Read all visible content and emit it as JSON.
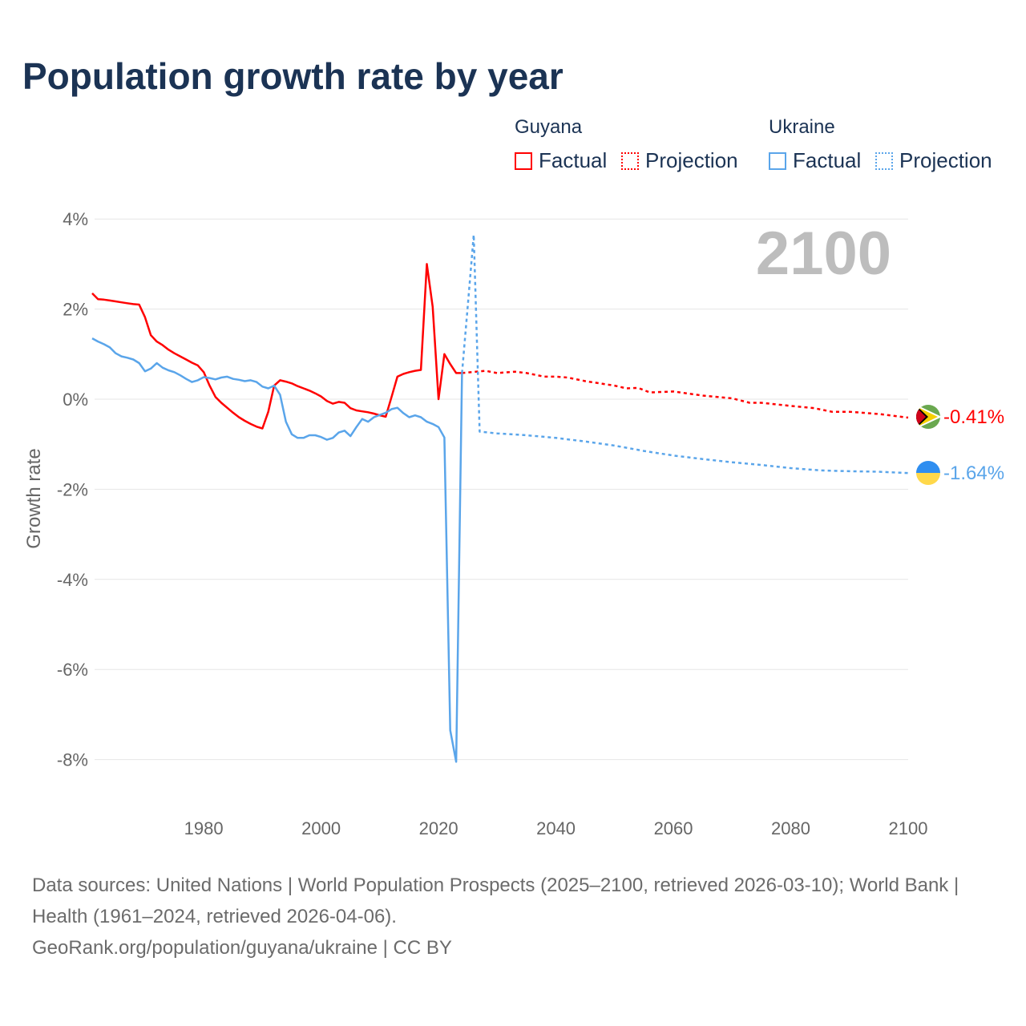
{
  "title": "Population growth rate by year",
  "legend": {
    "groups": [
      {
        "name": "Guyana",
        "color": "#ff0000",
        "factual": "Factual",
        "projection": "Projection"
      },
      {
        "name": "Ukraine",
        "color": "#5aa5ea",
        "factual": "Factual",
        "projection": "Projection"
      }
    ]
  },
  "year_label": "2100",
  "end_labels": {
    "guyana": "-0.41%",
    "ukraine": "-1.64%"
  },
  "footer": {
    "sources": "Data sources: United Nations | World Population Prospects (2025–2100, retrieved 2026-03-10); World Bank | Health (1961–2024, retrieved 2026-04-06).",
    "credit": "GeoRank.org/population/guyana/ukraine | CC BY"
  },
  "chart_data": {
    "type": "line",
    "title": "Population growth rate by year",
    "xlabel": "",
    "ylabel": "Growth rate",
    "xlim": [
      1961,
      2100
    ],
    "ylim": [
      -8.5,
      4.2
    ],
    "yticks": [
      4,
      2,
      0,
      -2,
      -4,
      -6,
      -8
    ],
    "ytick_labels": [
      "4%",
      "2%",
      "0%",
      "-2%",
      "-4%",
      "-6%",
      "-8%"
    ],
    "xticks": [
      1980,
      2000,
      2020,
      2040,
      2060,
      2080,
      2100
    ],
    "xtick_labels": [
      "1980",
      "2000",
      "2020",
      "2040",
      "2060",
      "2080",
      "2100"
    ],
    "grid": true,
    "legend_position": "top-right",
    "series": [
      {
        "name": "Guyana Factual",
        "color": "#ff0000",
        "dashed": false,
        "x": [
          1961,
          1962,
          1963,
          1964,
          1965,
          1966,
          1967,
          1968,
          1969,
          1970,
          1971,
          1972,
          1973,
          1974,
          1975,
          1976,
          1977,
          1978,
          1979,
          1980,
          1981,
          1982,
          1983,
          1984,
          1985,
          1986,
          1987,
          1988,
          1989,
          1990,
          1991,
          1992,
          1993,
          1994,
          1995,
          1996,
          1997,
          1998,
          1999,
          2000,
          2001,
          2002,
          2003,
          2004,
          2005,
          2006,
          2007,
          2008,
          2009,
          2010,
          2011,
          2012,
          2013,
          2014,
          2015,
          2016,
          2017,
          2018,
          2019,
          2020,
          2021,
          2022,
          2023,
          2024
        ],
        "y": [
          2.35,
          2.22,
          2.21,
          2.19,
          2.17,
          2.15,
          2.13,
          2.11,
          2.1,
          1.82,
          1.42,
          1.28,
          1.2,
          1.1,
          1.02,
          0.95,
          0.88,
          0.81,
          0.75,
          0.6,
          0.3,
          0.05,
          -0.08,
          -0.19,
          -0.3,
          -0.4,
          -0.48,
          -0.55,
          -0.61,
          -0.65,
          -0.28,
          0.3,
          0.42,
          0.39,
          0.35,
          0.29,
          0.24,
          0.19,
          0.13,
          0.06,
          -0.04,
          -0.1,
          -0.06,
          -0.08,
          -0.2,
          -0.25,
          -0.27,
          -0.29,
          -0.32,
          -0.36,
          -0.39,
          0.05,
          0.5,
          0.56,
          0.6,
          0.63,
          0.65,
          3.0,
          2.05,
          0.0,
          1.0,
          0.78,
          0.58,
          0.58
        ]
      },
      {
        "name": "Guyana Projection",
        "color": "#ff0000",
        "dashed": true,
        "x": [
          2024,
          2028,
          2030,
          2033,
          2035,
          2038,
          2040,
          2042,
          2045,
          2050,
          2052,
          2054,
          2056,
          2060,
          2065,
          2070,
          2073,
          2075,
          2080,
          2084,
          2087,
          2090,
          2095,
          2100
        ],
        "y": [
          0.58,
          0.63,
          0.58,
          0.61,
          0.58,
          0.5,
          0.5,
          0.48,
          0.4,
          0.3,
          0.24,
          0.25,
          0.15,
          0.17,
          0.08,
          0.02,
          -0.08,
          -0.08,
          -0.15,
          -0.2,
          -0.28,
          -0.28,
          -0.33,
          -0.41
        ]
      },
      {
        "name": "Ukraine Factual",
        "color": "#5aa5ea",
        "dashed": false,
        "x": [
          1961,
          1962,
          1963,
          1964,
          1965,
          1966,
          1967,
          1968,
          1969,
          1970,
          1971,
          1972,
          1973,
          1974,
          1975,
          1976,
          1977,
          1978,
          1979,
          1980,
          1981,
          1982,
          1983,
          1984,
          1985,
          1986,
          1987,
          1988,
          1989,
          1990,
          1991,
          1992,
          1993,
          1994,
          1995,
          1996,
          1997,
          1998,
          1999,
          2000,
          2001,
          2002,
          2003,
          2004,
          2005,
          2006,
          2007,
          2008,
          2009,
          2010,
          2011,
          2012,
          2013,
          2014,
          2015,
          2016,
          2017,
          2018,
          2019,
          2020,
          2021,
          2022,
          2023,
          2024
        ],
        "y": [
          1.35,
          1.28,
          1.22,
          1.15,
          1.02,
          0.95,
          0.92,
          0.88,
          0.8,
          0.62,
          0.68,
          0.8,
          0.7,
          0.64,
          0.6,
          0.53,
          0.45,
          0.38,
          0.42,
          0.49,
          0.47,
          0.44,
          0.48,
          0.5,
          0.45,
          0.43,
          0.4,
          0.42,
          0.38,
          0.28,
          0.24,
          0.3,
          0.1,
          -0.5,
          -0.78,
          -0.86,
          -0.86,
          -0.8,
          -0.8,
          -0.84,
          -0.9,
          -0.86,
          -0.74,
          -0.7,
          -0.82,
          -0.62,
          -0.44,
          -0.5,
          -0.4,
          -0.35,
          -0.3,
          -0.22,
          -0.19,
          -0.31,
          -0.4,
          -0.36,
          -0.4,
          -0.5,
          -0.55,
          -0.62,
          -0.85,
          -7.35,
          -8.05,
          0.58
        ]
      },
      {
        "name": "Ukraine Projection",
        "color": "#5aa5ea",
        "dashed": true,
        "x": [
          2024,
          2025,
          2026,
          2027,
          2030,
          2035,
          2040,
          2045,
          2050,
          2055,
          2060,
          2065,
          2070,
          2075,
          2080,
          2085,
          2090,
          2095,
          2100
        ],
        "y": [
          0.58,
          2.1,
          3.65,
          -0.72,
          -0.76,
          -0.8,
          -0.86,
          -0.94,
          -1.03,
          -1.15,
          -1.25,
          -1.33,
          -1.4,
          -1.46,
          -1.53,
          -1.58,
          -1.6,
          -1.61,
          -1.64
        ]
      }
    ]
  }
}
